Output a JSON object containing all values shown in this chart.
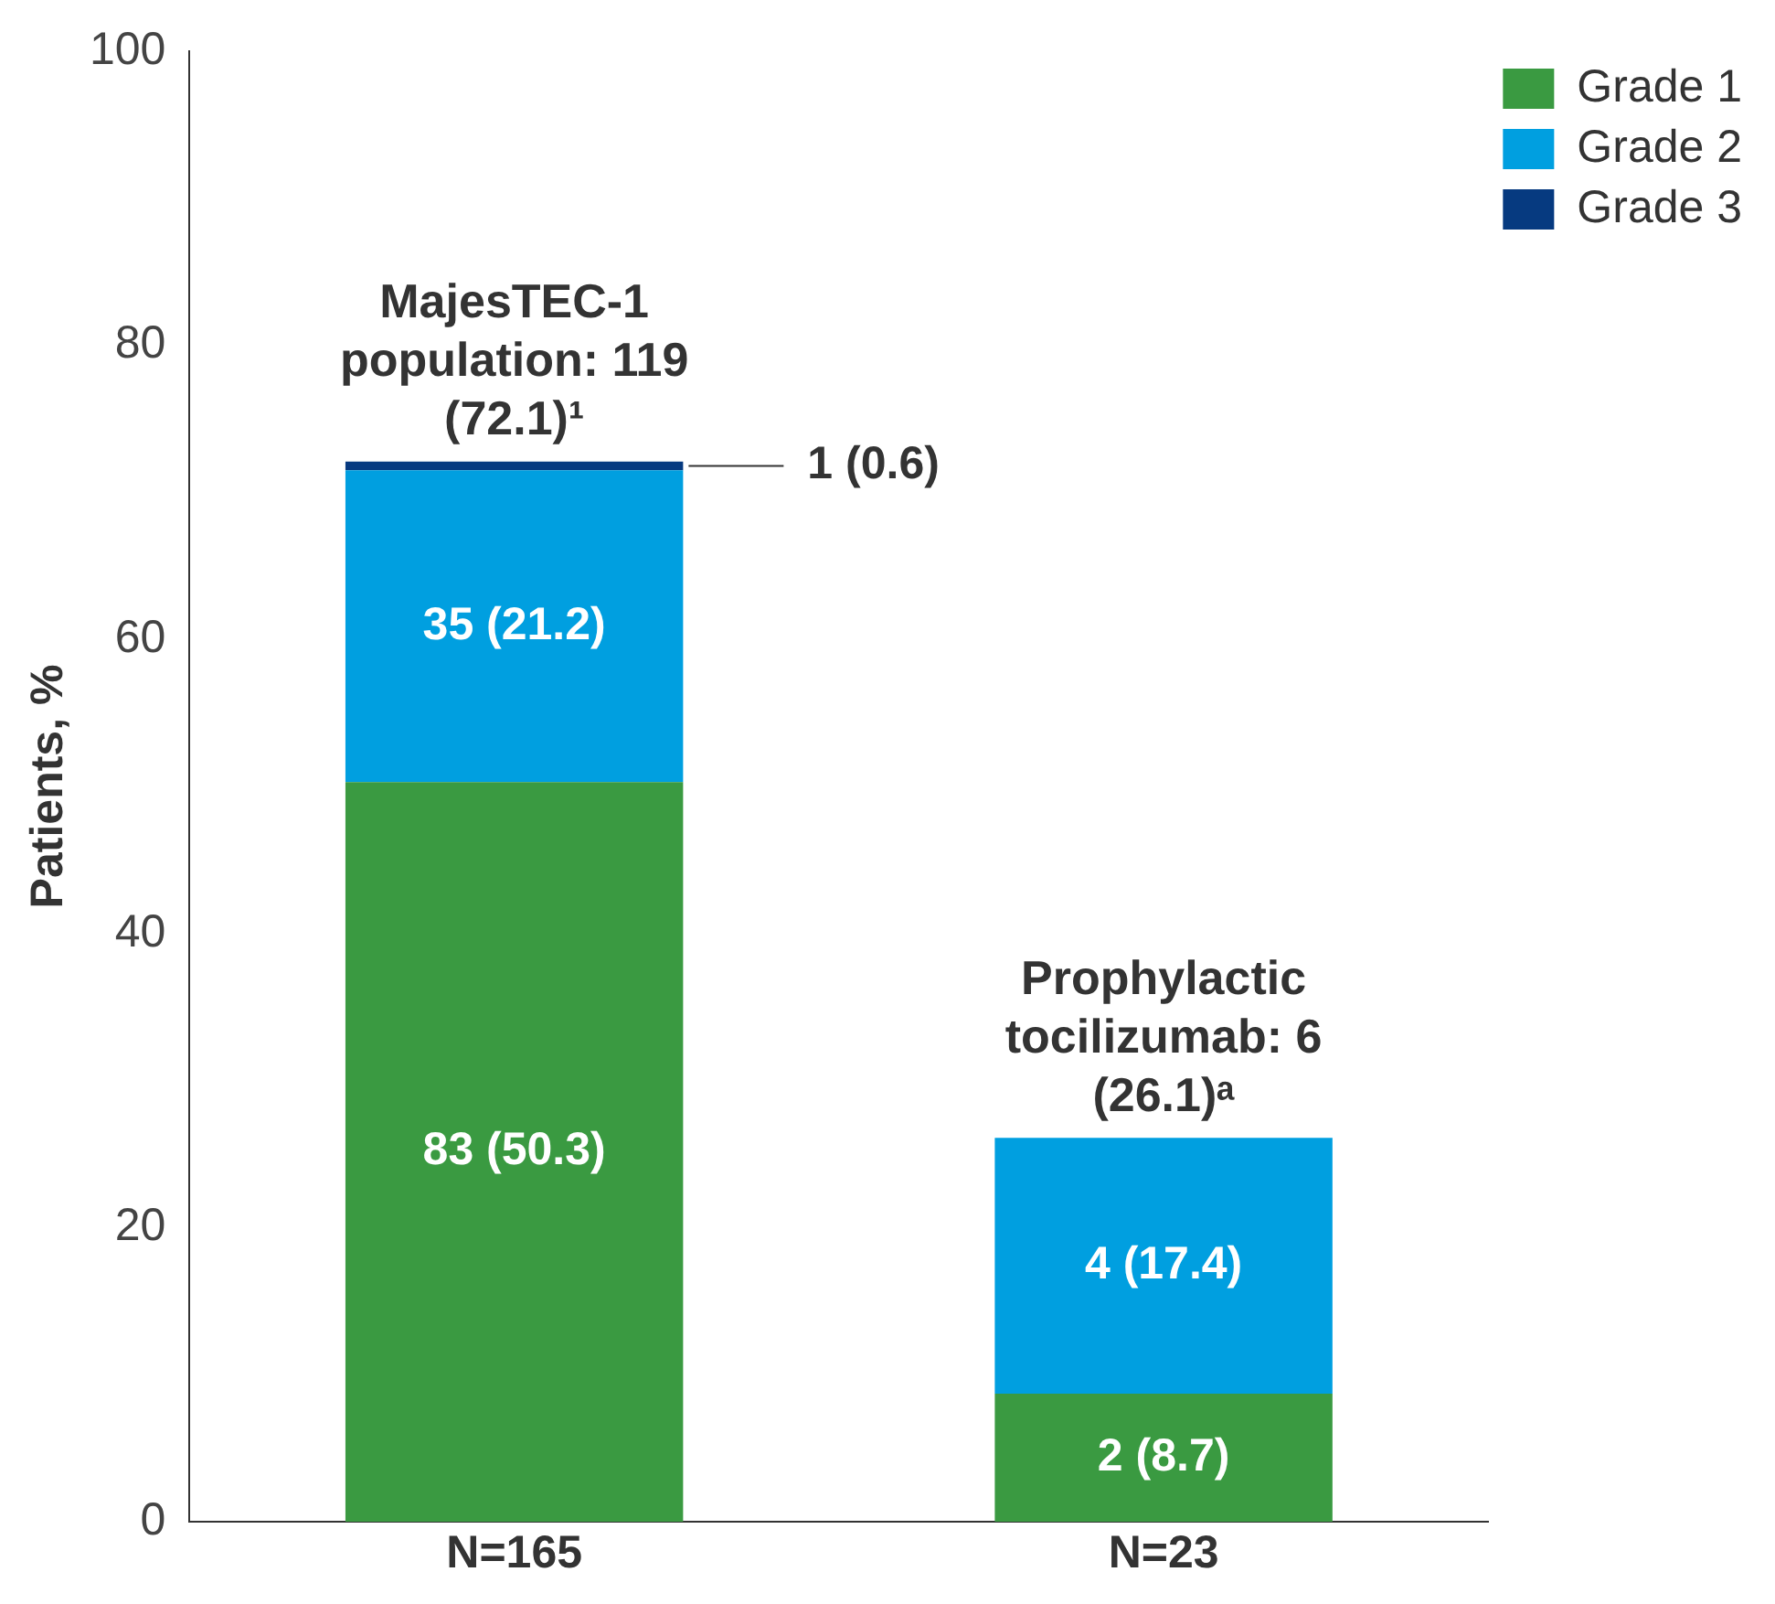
{
  "chart_data": {
    "type": "bar",
    "stacked": true,
    "ylabel": "Patients, %",
    "categories": [
      "N=165",
      "N=23"
    ],
    "series": [
      {
        "name": "Grade 1",
        "color": "#3a9a41",
        "values": [
          50.3,
          8.7
        ],
        "value_labels": [
          "83 (50.3)",
          "2 (8.7)"
        ]
      },
      {
        "name": "Grade 2",
        "color": "#009fe0",
        "values": [
          21.2,
          17.4
        ],
        "value_labels": [
          "35 (21.2)",
          "4 (17.4)"
        ]
      },
      {
        "name": "Grade 3",
        "color": "#063a80",
        "values": [
          0.6,
          null
        ],
        "value_labels": [
          "1 (0.6)",
          null
        ]
      }
    ],
    "totals": [
      "MajesTEC-1 population: 119 (72.1)¹",
      "Prophylactic tocilizumab: 6 (26.1)ᵃ"
    ],
    "ylim": [
      0,
      100
    ],
    "yticks": [
      0,
      20,
      40,
      60,
      80,
      100
    ],
    "grid": false,
    "legend": "top right"
  }
}
